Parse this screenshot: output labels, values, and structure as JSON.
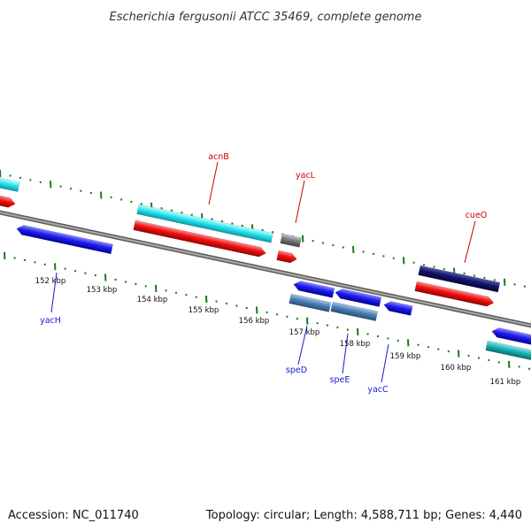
{
  "title": "Escherichia fergusonii ATCC 35469, complete genome",
  "footer": {
    "accession": "Accession: NC_011740",
    "topology": "Topology: circular; Length: 4,588,711 bp; Genes: 4,440"
  },
  "colors": {
    "backbone": "#888888",
    "tick": "#1a7a1a",
    "top_label": "#cc0000",
    "bottom_label": "#1a1acc"
  },
  "scale_labels": [
    "152 kbp",
    "153 kbp",
    "154 kbp",
    "155 kbp",
    "156 kbp",
    "157 kbp",
    "158 kbp",
    "159 kbp",
    "160 kbp",
    "161 kbp"
  ],
  "gene_labels": {
    "top": [
      "acnB",
      "yacL",
      "cueO"
    ],
    "bottom": [
      "yacH",
      "speD",
      "speE",
      "yacC"
    ]
  }
}
